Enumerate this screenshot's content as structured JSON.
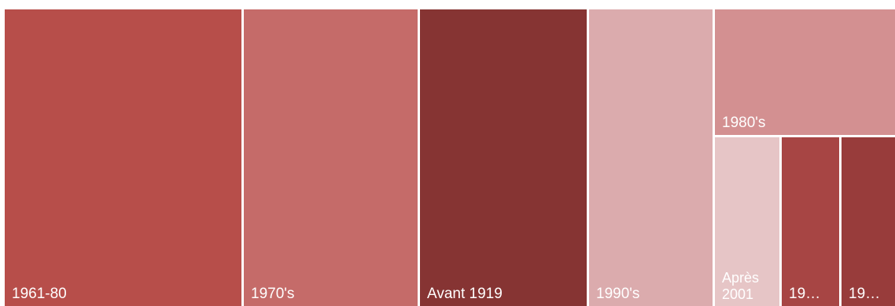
{
  "chart_data": {
    "type": "treemap",
    "title": "",
    "tiles": [
      {
        "name": "1961-80",
        "label": "1961-80",
        "value": 300,
        "color": "#b74e4a"
      },
      {
        "name": "1970's",
        "label": "1970's",
        "value": 221,
        "color": "#c56b69"
      },
      {
        "name": "Avant 1919",
        "label": "Avant 1919",
        "value": 212,
        "color": "#863433"
      },
      {
        "name": "1990's",
        "label": "1990's",
        "value": 157,
        "color": "#dbabad"
      },
      {
        "name": "1980's",
        "label": "1980's",
        "value": 97,
        "color": "#d39091"
      },
      {
        "name": "Après 2001",
        "label": "Après\n2001",
        "value": 48,
        "color": "#e6c5c6"
      },
      {
        "name": "19…",
        "label": "19…",
        "value": 43,
        "color": "#a74544"
      },
      {
        "name": "19…",
        "label": "19…",
        "value": 40,
        "color": "#983c3b"
      }
    ]
  }
}
